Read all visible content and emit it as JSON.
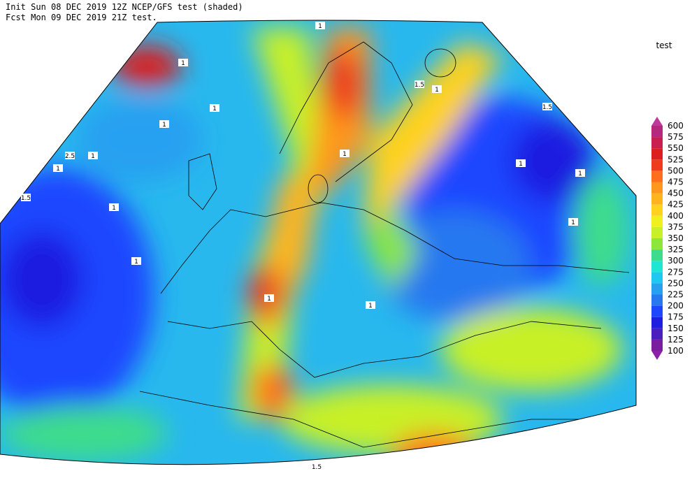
{
  "header": {
    "line1": "Init  Sun 08 DEC 2019 12Z  NCEP/GFS test (shaded)",
    "line2": "Fcst Mon 09 DEC 2019 21Z test."
  },
  "legend": {
    "title": "test",
    "ticks": [
      100,
      125,
      150,
      175,
      200,
      225,
      250,
      275,
      300,
      325,
      350,
      375,
      400,
      425,
      450,
      475,
      500,
      525,
      550,
      575,
      600
    ],
    "colors": [
      "#7a1d9e",
      "#4b1fbe",
      "#1e1ee0",
      "#1e46ff",
      "#2878f0",
      "#28a0f0",
      "#1ec8f0",
      "#1ee6d2",
      "#3cdc8c",
      "#8ce63c",
      "#c8f028",
      "#f0f01e",
      "#ffd21e",
      "#ffb41e",
      "#ff961e",
      "#ff6e1e",
      "#f03c1e",
      "#dc1e1e",
      "#c81e50",
      "#b4287d"
    ],
    "under_color": "#8c1fa8",
    "over_color": "#c0399a"
  },
  "map": {
    "contour_labels": [
      "1",
      "1",
      "1",
      "1.5",
      "1",
      "1",
      "1.5",
      "1",
      "1",
      "2.5",
      "1",
      "1.5",
      "1",
      "1",
      "1",
      "1",
      "1",
      "1",
      "1",
      "1.5"
    ]
  }
}
